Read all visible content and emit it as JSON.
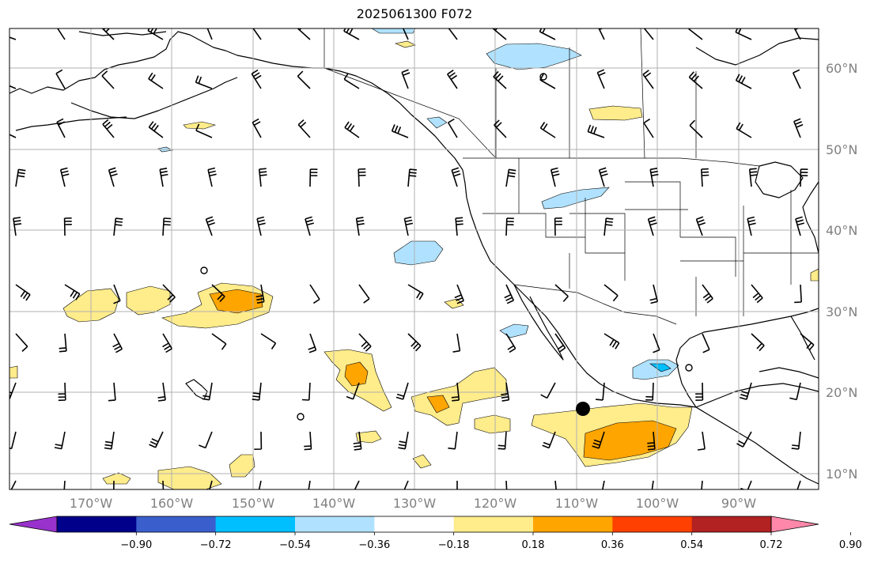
{
  "title": "2025061300 F072",
  "lat_labels": [
    "60°N",
    "50°N",
    "40°N",
    "30°N",
    "20°N",
    "10°N"
  ],
  "lon_labels": [
    "170°W",
    "160°W",
    "150°W",
    "140°W",
    "130°W",
    "120°W",
    "110°W",
    "100°W",
    "90°W"
  ],
  "colorbar": {
    "colors": [
      "#9932cc",
      "#00008b",
      "#3a5fcd",
      "#00bfff",
      "#b0e2ff",
      "#ffffff",
      "#ffec8b",
      "#ffa500",
      "#ff4000",
      "#b22222",
      "#ff88aa"
    ],
    "tick_labels": [
      "−0.90",
      "−0.72",
      "−0.54",
      "−0.36",
      "−0.18",
      "0.18",
      "0.36",
      "0.54",
      "0.72",
      "0.90"
    ]
  },
  "colors": {
    "positive_light": "#ffec8b",
    "positive_medium": "#ffa500",
    "negative_light": "#b0e2ff",
    "negative_medium": "#00bfff",
    "grid": "#b0b0b0",
    "coastline": "#000000"
  }
}
